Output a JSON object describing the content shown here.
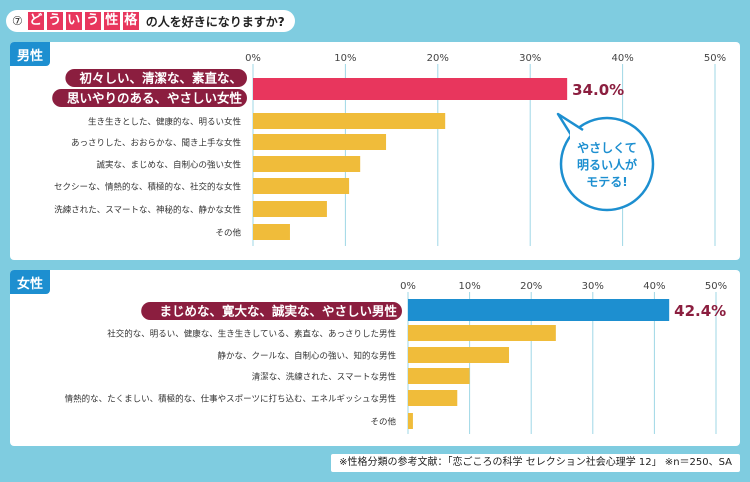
{
  "title": {
    "number": "⑦",
    "highlight_chars": [
      "ど",
      "う",
      "い",
      "う",
      "性",
      "格"
    ],
    "rest": "の人を好きになりますか?"
  },
  "colors": {
    "background": "#7fcce0",
    "male_top": "#e8365d",
    "female_top": "#1d8fd0",
    "other_bar": "#f0bc3a",
    "top_label_bg": "#8b1e3f",
    "grid": "#9fd7e6",
    "tag_bg": "#1d8fd0"
  },
  "callout": {
    "lines": [
      "やさしくて",
      "明るい人が",
      "モテる!"
    ]
  },
  "footnote": "※性格分類の参考文献：「恋ごころの科学 セレクション社会心理学 12」 ※n＝250、SA",
  "chart_data": [
    {
      "type": "bar",
      "orientation": "horizontal",
      "panel_label": "男性",
      "xlim": [
        0,
        50
      ],
      "ticks": [
        "0%",
        "10%",
        "20%",
        "30%",
        "40%",
        "50%"
      ],
      "grid": true,
      "categories": [
        [
          "初々しい、清潔な、素直な、",
          "思いやりのある、やさしい女性"
        ],
        [
          "生き生きとした、健康的な、明るい女性"
        ],
        [
          "あっさりした、おおらかな、聞き上手な女性"
        ],
        [
          "誠実な、まじめな、自制心の強い女性"
        ],
        [
          "セクシーな、情熱的な、積極的な、社交的な女性"
        ],
        [
          "洗練された、スマートな、神秘的な、静かな女性"
        ],
        [
          "その他"
        ]
      ],
      "values": [
        34.0,
        20.8,
        14.4,
        11.6,
        10.4,
        8.0,
        4.0
      ],
      "data_labels": [
        "34.0%",
        "",
        "",
        "",
        "",
        "",
        ""
      ]
    },
    {
      "type": "bar",
      "orientation": "horizontal",
      "panel_label": "女性",
      "xlim": [
        0,
        50
      ],
      "ticks": [
        "0%",
        "10%",
        "20%",
        "30%",
        "40%",
        "50%"
      ],
      "grid": true,
      "categories": [
        [
          "まじめな、寛大な、誠実な、やさしい男性"
        ],
        [
          "社交的な、明るい、健康な、生き生きしている、素直な、あっさりした男性"
        ],
        [
          "静かな、クールな、自制心の強い、知的な男性"
        ],
        [
          "清潔な、洗練された、スマートな男性"
        ],
        [
          "情熱的な、たくましい、積極的な、仕事やスポーツに打ち込む、エネルギッシュな男性"
        ],
        [
          "その他"
        ]
      ],
      "values": [
        42.4,
        24.0,
        16.4,
        10.0,
        8.0,
        0.8
      ],
      "data_labels": [
        "42.4%",
        "",
        "",
        "",
        "",
        ""
      ]
    }
  ]
}
